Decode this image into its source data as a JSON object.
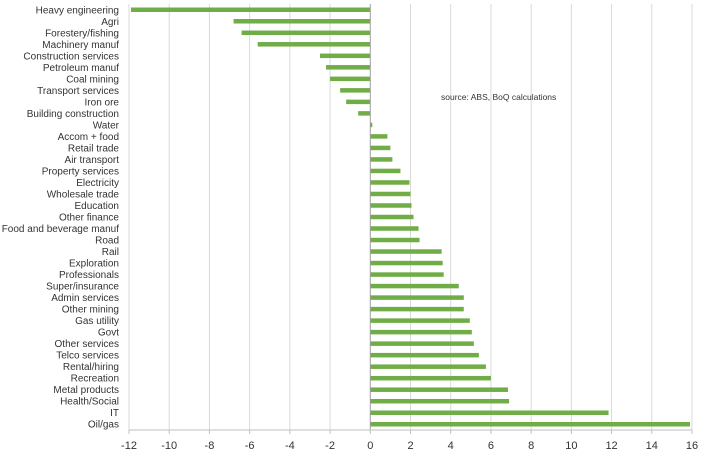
{
  "chart_data": {
    "type": "bar",
    "orientation": "horizontal",
    "annotation": "source:  ABS, BoQ calculations",
    "categories": [
      "Heavy engineering",
      "Agri",
      "Forestery/fishing",
      "Machinery manuf",
      "Construction services",
      "Petroleum manuf",
      "Coal mining",
      "Transport services",
      "Iron ore",
      "Building construction",
      "Water",
      "Accom + food",
      "Retail trade",
      "Air transport",
      "Property services",
      "Electricity",
      "Wholesale trade",
      "Education",
      "Other finance",
      "Food and beverage manuf",
      "Road",
      "Rail",
      "Exploration",
      "Professionals",
      "Super/insurance",
      "Admin services",
      "Other mining",
      "Gas utility",
      "Govt",
      "Other services",
      "Telco services",
      "Rental/hiring",
      "Recreation",
      "Metal products",
      "Health/Social",
      "IT",
      "Oil/gas"
    ],
    "values": [
      -11.9,
      -6.8,
      -6.4,
      -5.6,
      -2.5,
      -2.2,
      -2.0,
      -1.5,
      -1.2,
      -0.6,
      0.1,
      0.85,
      1.0,
      1.1,
      1.5,
      1.95,
      2.0,
      2.05,
      2.15,
      2.4,
      2.45,
      3.55,
      3.6,
      3.65,
      4.4,
      4.65,
      4.65,
      4.95,
      5.05,
      5.15,
      5.4,
      5.75,
      6.0,
      6.85,
      6.9,
      11.85,
      15.9
    ],
    "xlim": [
      -12,
      16
    ],
    "xticks": [
      -12,
      -10,
      -8,
      -6,
      -4,
      -2,
      0,
      2,
      4,
      6,
      8,
      10,
      12,
      14,
      16
    ],
    "grid": true,
    "legend": "none",
    "bar_color": "#70ad47"
  }
}
